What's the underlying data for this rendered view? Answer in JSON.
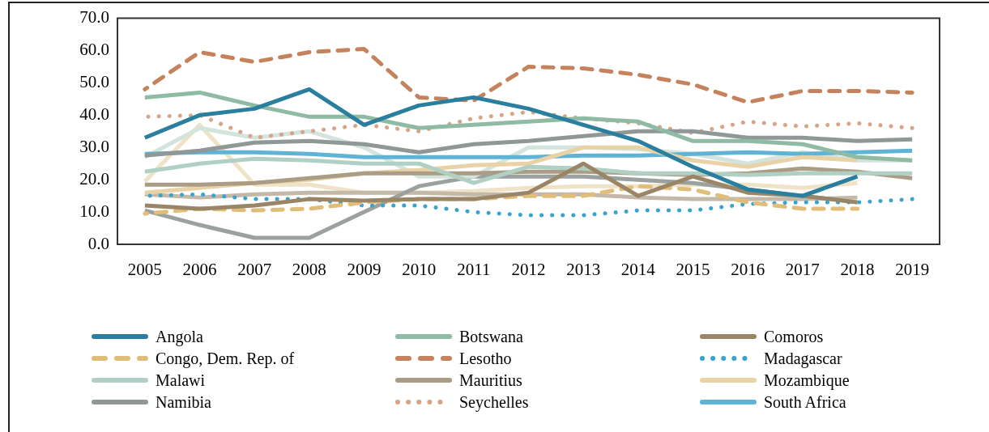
{
  "chart_data": {
    "type": "line",
    "categories": [
      "2005",
      "2006",
      "2007",
      "2008",
      "2009",
      "2010",
      "2011",
      "2012",
      "2013",
      "2014",
      "2015",
      "2016",
      "2017",
      "2018",
      "2019"
    ],
    "ylim": [
      0,
      70
    ],
    "yticks": [
      {
        "value": 0,
        "label": "0.0"
      },
      {
        "value": 10,
        "label": "10.0"
      },
      {
        "value": 20,
        "label": "20.0"
      },
      {
        "value": 30,
        "label": "30.0"
      },
      {
        "value": 40,
        "label": "40.0"
      },
      {
        "value": 50,
        "label": "50.0"
      },
      {
        "value": 60,
        "label": "60.0"
      },
      {
        "value": 70,
        "label": "70.0"
      }
    ],
    "grid": false,
    "legend": "bottom",
    "marker": "none",
    "series": [
      {
        "name": "Angola",
        "color": "#2a7f9e",
        "line_style": "solid",
        "values": [
          33,
          40,
          42,
          48,
          37,
          43,
          45.5,
          42,
          37,
          32,
          24,
          17,
          15,
          21,
          null
        ]
      },
      {
        "name": "Botswana",
        "color": "#8fbaa3",
        "line_style": "solid",
        "values": [
          45.5,
          47,
          43,
          39.5,
          39.5,
          36,
          37,
          38,
          39,
          38,
          32,
          32,
          31,
          27,
          26
        ]
      },
      {
        "name": "Comoros",
        "color": "#9a8566",
        "line_style": "solid",
        "values": [
          12,
          11,
          12,
          14,
          13.5,
          14,
          14,
          16,
          25,
          15,
          21,
          16,
          15,
          13,
          null
        ]
      },
      {
        "name": "Congo, Dem. Rep. of",
        "color": "#e0bd78",
        "line_style": "dashed",
        "values": [
          9.5,
          11,
          10.5,
          11,
          13,
          14,
          14,
          15,
          15,
          18,
          17,
          13,
          11,
          11,
          null
        ]
      },
      {
        "name": "Lesotho",
        "color": "#c4835d",
        "line_style": "dashed",
        "values": [
          48,
          59.5,
          56.5,
          59.5,
          60.5,
          45.5,
          44.5,
          55,
          54.5,
          52.5,
          49.5,
          44,
          47.5,
          47.5,
          47
        ]
      },
      {
        "name": "Madagascar",
        "color": "#3aa3cc",
        "line_style": "dotted",
        "values": [
          15,
          15.5,
          14,
          14,
          12,
          12,
          10,
          9,
          9,
          10.5,
          10.5,
          12.5,
          13,
          13,
          14
        ]
      },
      {
        "name": "Malawi",
        "color": "#b0d0c3",
        "line_style": "solid",
        "values": [
          22.5,
          25,
          26.5,
          26,
          25,
          25,
          19,
          24,
          23.5,
          22,
          22,
          21.5,
          22,
          22,
          22
        ]
      },
      {
        "name": "Mauritius",
        "color": "#ab9c86",
        "line_style": "solid",
        "values": [
          18.5,
          18.5,
          19,
          20.5,
          22,
          22,
          22,
          22.5,
          22.5,
          22,
          21.5,
          22,
          23.5,
          22.5,
          20.5
        ]
      },
      {
        "name": "Mozambique",
        "color": "#e8d2a6",
        "line_style": "solid",
        "values": [
          16,
          17.5,
          19,
          20,
          22,
          23,
          24.5,
          25,
          30,
          30,
          26,
          24,
          27,
          26,
          null
        ]
      },
      {
        "name": "Namibia",
        "color": "#8f9896",
        "line_style": "solid",
        "values": [
          27.5,
          29,
          31.5,
          32,
          31,
          28.5,
          31,
          32,
          33.5,
          35,
          35,
          33,
          33,
          32,
          32.5
        ]
      },
      {
        "name": "Seychelles",
        "color": "#d6a487",
        "line_style": "dotted",
        "values": [
          39.5,
          40,
          33,
          35,
          37,
          35,
          39,
          41,
          39,
          37.5,
          34.5,
          38,
          36.5,
          37.5,
          36
        ]
      },
      {
        "name": "South Africa",
        "color": "#5fb4d6",
        "line_style": "solid",
        "values": [
          28,
          28.5,
          28.5,
          28,
          27,
          27,
          27,
          27,
          27.5,
          27.5,
          28,
          28.5,
          28,
          28.5,
          29
        ]
      },
      {
        "color": "#d2e4dc",
        "line_style": "solid",
        "values": [
          27,
          36,
          33,
          35,
          30,
          21,
          21,
          30,
          30,
          29.5,
          28,
          25,
          28.5,
          26,
          26
        ]
      },
      {
        "color": "#9ba19f",
        "line_style": "solid",
        "values": [
          10.5,
          6,
          2,
          2,
          10,
          18,
          21,
          21,
          21,
          20,
          19,
          17,
          15,
          13,
          null
        ]
      },
      {
        "color": "#c4b9a8",
        "line_style": "solid",
        "values": [
          15.5,
          14.5,
          15.5,
          16,
          16,
          16,
          15.5,
          15.5,
          15.5,
          14.5,
          14,
          14,
          14,
          14.5,
          null
        ]
      },
      {
        "color": "#efe2c6",
        "line_style": "solid",
        "values": [
          19.5,
          37,
          18.5,
          18.5,
          16,
          16,
          16.5,
          17.5,
          18,
          18,
          18.5,
          18.5,
          17.5,
          19,
          null
        ]
      }
    ]
  }
}
